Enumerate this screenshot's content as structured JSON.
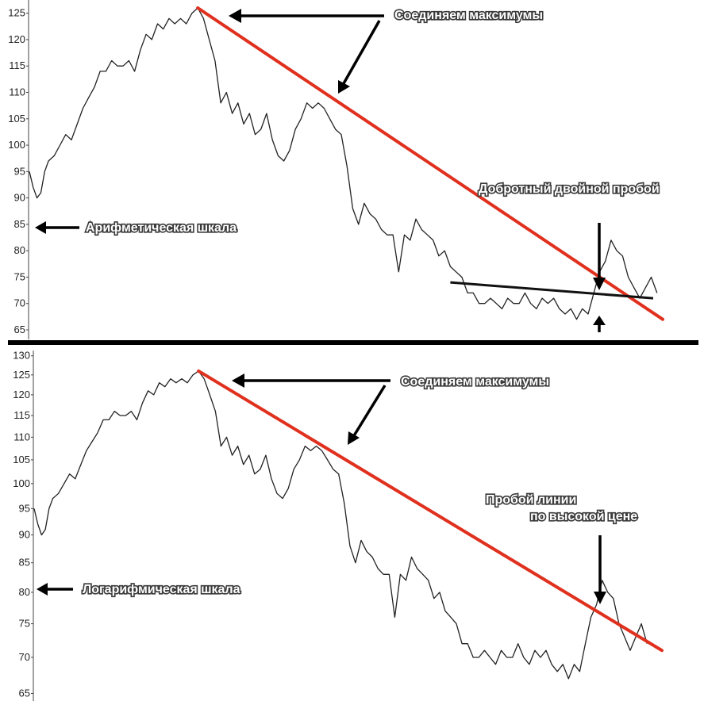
{
  "chart_data": [
    {
      "type": "line",
      "scale": "arithmetic",
      "yticks": [
        65,
        70,
        75,
        80,
        85,
        90,
        95,
        100,
        105,
        110,
        115,
        120,
        125
      ],
      "ylim": [
        63.5,
        127.5
      ],
      "series_points": [
        [
          0,
          95
        ],
        [
          2,
          92
        ],
        [
          4,
          90
        ],
        [
          6,
          91
        ],
        [
          8,
          95
        ],
        [
          10,
          97
        ],
        [
          13,
          98
        ],
        [
          16,
          100
        ],
        [
          19,
          102
        ],
        [
          22,
          101
        ],
        [
          25,
          104
        ],
        [
          28,
          107
        ],
        [
          31,
          109
        ],
        [
          34,
          111
        ],
        [
          37,
          114
        ],
        [
          40,
          114
        ],
        [
          43,
          116
        ],
        [
          46,
          115
        ],
        [
          49,
          115
        ],
        [
          52,
          116
        ],
        [
          55,
          114
        ],
        [
          58,
          118
        ],
        [
          61,
          121
        ],
        [
          64,
          120
        ],
        [
          67,
          123
        ],
        [
          70,
          122
        ],
        [
          73,
          124
        ],
        [
          76,
          123
        ],
        [
          79,
          124
        ],
        [
          82,
          123
        ],
        [
          85,
          125
        ],
        [
          88,
          126
        ],
        [
          91,
          124
        ],
        [
          94,
          120
        ],
        [
          97,
          116
        ],
        [
          100,
          108
        ],
        [
          103,
          110
        ],
        [
          106,
          106
        ],
        [
          109,
          108
        ],
        [
          112,
          104
        ],
        [
          115,
          106
        ],
        [
          118,
          102
        ],
        [
          121,
          103
        ],
        [
          124,
          106
        ],
        [
          127,
          101
        ],
        [
          130,
          98
        ],
        [
          133,
          97
        ],
        [
          136,
          99
        ],
        [
          139,
          103
        ],
        [
          142,
          105
        ],
        [
          145,
          108
        ],
        [
          148,
          107
        ],
        [
          151,
          108
        ],
        [
          154,
          107
        ],
        [
          157,
          105
        ],
        [
          160,
          103
        ],
        [
          163,
          102
        ],
        [
          166,
          96
        ],
        [
          169,
          88
        ],
        [
          172,
          85
        ],
        [
          175,
          89
        ],
        [
          178,
          87
        ],
        [
          181,
          86
        ],
        [
          184,
          84
        ],
        [
          187,
          83
        ],
        [
          190,
          83
        ],
        [
          193,
          76
        ],
        [
          196,
          83
        ],
        [
          199,
          82
        ],
        [
          202,
          86
        ],
        [
          205,
          84
        ],
        [
          208,
          83
        ],
        [
          211,
          82
        ],
        [
          214,
          79
        ],
        [
          217,
          80
        ],
        [
          220,
          77
        ],
        [
          223,
          76
        ],
        [
          226,
          75
        ],
        [
          229,
          72
        ],
        [
          232,
          72
        ],
        [
          235,
          70
        ],
        [
          238,
          70
        ],
        [
          241,
          71
        ],
        [
          244,
          70
        ],
        [
          247,
          69
        ],
        [
          250,
          71
        ],
        [
          253,
          70
        ],
        [
          256,
          70
        ],
        [
          259,
          72
        ],
        [
          262,
          70
        ],
        [
          265,
          69
        ],
        [
          268,
          71
        ],
        [
          271,
          70
        ],
        [
          274,
          71
        ],
        [
          277,
          69
        ],
        [
          280,
          68
        ],
        [
          283,
          69
        ],
        [
          286,
          67
        ],
        [
          289,
          69
        ],
        [
          292,
          68
        ],
        [
          295,
          72
        ],
        [
          298,
          76
        ],
        [
          301,
          78
        ],
        [
          304,
          82
        ],
        [
          307,
          80
        ],
        [
          310,
          79
        ],
        [
          313,
          75
        ],
        [
          316,
          73
        ],
        [
          319,
          71
        ],
        [
          322,
          73
        ],
        [
          325,
          75
        ],
        [
          328,
          72
        ]
      ],
      "trend_line": {
        "from": [
          88,
          126
        ],
        "to": [
          331,
          67
        ]
      },
      "support_line": {
        "from": [
          220,
          74
        ],
        "to": [
          326,
          71
        ]
      }
    },
    {
      "type": "line",
      "scale": "log",
      "yticks": [
        65,
        70,
        75,
        80,
        85,
        90,
        95,
        100,
        105,
        110,
        115,
        120,
        125,
        130
      ],
      "ylim": [
        64,
        131
      ],
      "series_points": [
        [
          0,
          95
        ],
        [
          2,
          92
        ],
        [
          4,
          90
        ],
        [
          6,
          91
        ],
        [
          8,
          95
        ],
        [
          10,
          97
        ],
        [
          13,
          98
        ],
        [
          16,
          100
        ],
        [
          19,
          102
        ],
        [
          22,
          101
        ],
        [
          25,
          104
        ],
        [
          28,
          107
        ],
        [
          31,
          109
        ],
        [
          34,
          111
        ],
        [
          37,
          114
        ],
        [
          40,
          114
        ],
        [
          43,
          116
        ],
        [
          46,
          115
        ],
        [
          49,
          115
        ],
        [
          52,
          116
        ],
        [
          55,
          114
        ],
        [
          58,
          118
        ],
        [
          61,
          121
        ],
        [
          64,
          120
        ],
        [
          67,
          123
        ],
        [
          70,
          122
        ],
        [
          73,
          124
        ],
        [
          76,
          123
        ],
        [
          79,
          124
        ],
        [
          82,
          123
        ],
        [
          85,
          125
        ],
        [
          88,
          126
        ],
        [
          91,
          124
        ],
        [
          94,
          120
        ],
        [
          97,
          116
        ],
        [
          100,
          108
        ],
        [
          103,
          110
        ],
        [
          106,
          106
        ],
        [
          109,
          108
        ],
        [
          112,
          104
        ],
        [
          115,
          106
        ],
        [
          118,
          102
        ],
        [
          121,
          103
        ],
        [
          124,
          106
        ],
        [
          127,
          101
        ],
        [
          130,
          98
        ],
        [
          133,
          97
        ],
        [
          136,
          99
        ],
        [
          139,
          103
        ],
        [
          142,
          105
        ],
        [
          145,
          108
        ],
        [
          148,
          107
        ],
        [
          151,
          108
        ],
        [
          154,
          107
        ],
        [
          157,
          105
        ],
        [
          160,
          103
        ],
        [
          163,
          102
        ],
        [
          166,
          96
        ],
        [
          169,
          88
        ],
        [
          172,
          85
        ],
        [
          175,
          89
        ],
        [
          178,
          87
        ],
        [
          181,
          86
        ],
        [
          184,
          84
        ],
        [
          187,
          83
        ],
        [
          190,
          83
        ],
        [
          193,
          76
        ],
        [
          196,
          83
        ],
        [
          199,
          82
        ],
        [
          202,
          86
        ],
        [
          205,
          84
        ],
        [
          208,
          83
        ],
        [
          211,
          82
        ],
        [
          214,
          79
        ],
        [
          217,
          80
        ],
        [
          220,
          77
        ],
        [
          223,
          76
        ],
        [
          226,
          75
        ],
        [
          229,
          72
        ],
        [
          232,
          72
        ],
        [
          235,
          70
        ],
        [
          238,
          70
        ],
        [
          241,
          71
        ],
        [
          244,
          70
        ],
        [
          247,
          69
        ],
        [
          250,
          71
        ],
        [
          253,
          70
        ],
        [
          256,
          70
        ],
        [
          259,
          72
        ],
        [
          262,
          70
        ],
        [
          265,
          69
        ],
        [
          268,
          71
        ],
        [
          271,
          70
        ],
        [
          274,
          71
        ],
        [
          277,
          69
        ],
        [
          280,
          68
        ],
        [
          283,
          69
        ],
        [
          286,
          67
        ],
        [
          289,
          69
        ],
        [
          292,
          68
        ],
        [
          295,
          72
        ],
        [
          298,
          76
        ],
        [
          301,
          78
        ],
        [
          304,
          82
        ],
        [
          307,
          80
        ],
        [
          310,
          79
        ],
        [
          313,
          75
        ],
        [
          316,
          73
        ],
        [
          319,
          71
        ],
        [
          322,
          73
        ],
        [
          325,
          75
        ],
        [
          328,
          72
        ]
      ],
      "trend_line": {
        "from": [
          88,
          126
        ],
        "to": [
          336,
          71
        ]
      }
    }
  ],
  "annotations": {
    "top_connect_highs": "Соединяем максимумы",
    "top_breakout": "Добротный двойной пробой",
    "top_scale": "Арифметическая шкала",
    "bottom_connect_highs": "Соединяем максимумы",
    "bottom_breakout_line1": "Пробой линии",
    "bottom_breakout_line2": "по высокой цене",
    "bottom_scale": "Логарифмическая шкала"
  },
  "colors": {
    "trend": "#e0301e",
    "price": "#222222",
    "divider": "#000000"
  }
}
